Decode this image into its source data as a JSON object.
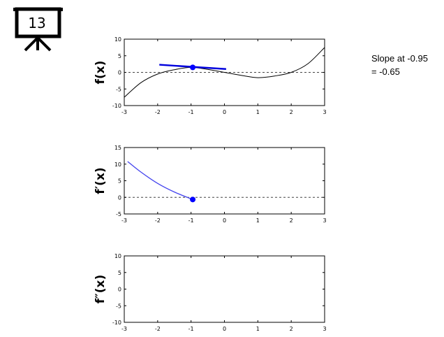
{
  "badge": {
    "number": "13",
    "icon": "presentation-board-icon"
  },
  "note": {
    "line1": "Slope at -0.95",
    "line2": "= -0.65"
  },
  "colors": {
    "curve": "#000000",
    "tangent": "#0000dd",
    "point": "#0000ff",
    "derivative": "#4444ee",
    "zero_line": "#444444"
  },
  "chart_data": [
    {
      "type": "line",
      "ylabel": "f(x)",
      "xlim": [
        -3,
        3
      ],
      "ylim": [
        -10,
        10
      ],
      "xticks": [
        -3,
        -2,
        -1,
        0,
        1,
        2,
        3
      ],
      "yticks": [
        -10,
        -5,
        0,
        5,
        10
      ],
      "zero_line": true,
      "series": [
        {
          "role": "function",
          "x": [
            -3,
            -2.5,
            -2,
            -1.5,
            -1,
            -0.5,
            0,
            0.5,
            1,
            1.5,
            2,
            2.5,
            3
          ],
          "y": [
            -7.5,
            -3.1,
            -0.5,
            0.8,
            1.5,
            0.9,
            0,
            -0.9,
            -1.6,
            -1.1,
            0,
            2.6,
            7.5
          ]
        },
        {
          "role": "tangent-line",
          "x": [
            -1.95,
            0.05
          ],
          "y": [
            2.3,
            1.0
          ]
        }
      ],
      "point": {
        "x": -0.95,
        "y": 1.5
      }
    },
    {
      "type": "line",
      "ylabel": "f′(x)",
      "xlim": [
        -3,
        3
      ],
      "ylim": [
        -5,
        15
      ],
      "xticks": [
        -3,
        -2,
        -1,
        0,
        1,
        2,
        3
      ],
      "yticks": [
        -5,
        0,
        5,
        10,
        15
      ],
      "zero_line": true,
      "series": [
        {
          "role": "derivative",
          "x": [
            -2.9,
            -2.5,
            -2,
            -1.5,
            -0.95
          ],
          "y": [
            10.8,
            7.6,
            4.2,
            1.6,
            -0.65
          ]
        }
      ],
      "point": {
        "x": -0.95,
        "y": -0.65
      }
    },
    {
      "type": "line",
      "ylabel": "f″(x)",
      "xlim": [
        -3,
        3
      ],
      "ylim": [
        -10,
        10
      ],
      "xticks": [
        -3,
        -2,
        -1,
        0,
        1,
        2,
        3
      ],
      "yticks": [
        -10,
        -5,
        0,
        5,
        10
      ],
      "zero_line": false,
      "series": []
    }
  ]
}
